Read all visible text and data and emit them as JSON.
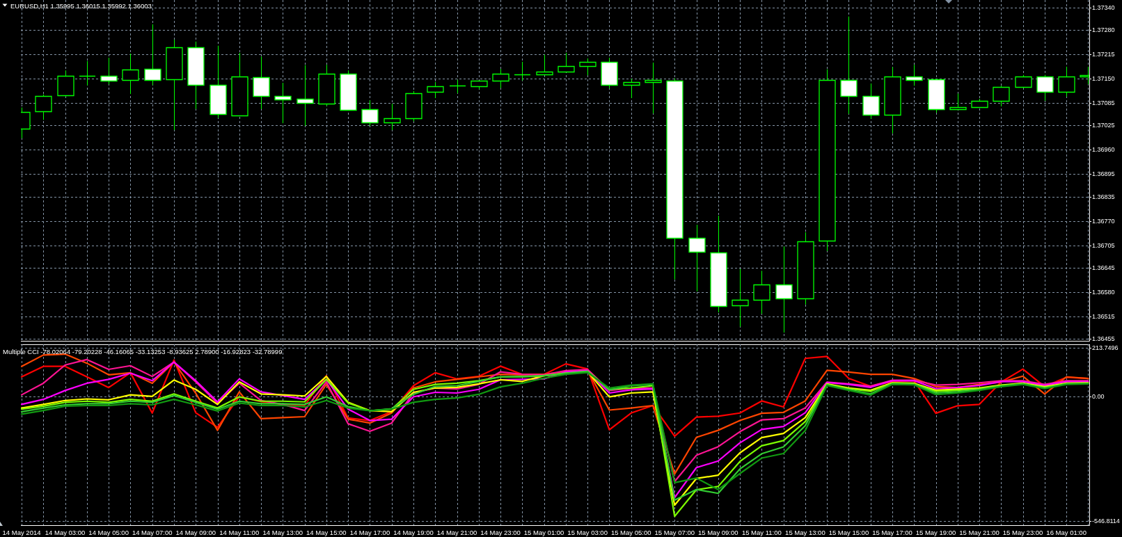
{
  "chart_data": [
    {
      "type": "candlestick",
      "title": "EURUSD,H1 1.35995 1.36015 1.35992 1.36003",
      "x": [
        "2014-05-14T01:00",
        "2014-05-14T02:00",
        "2014-05-14T03:00",
        "2014-05-14T04:00",
        "2014-05-14T05:00",
        "2014-05-14T06:00",
        "2014-05-14T07:00",
        "2014-05-14T08:00",
        "2014-05-14T09:00",
        "2014-05-14T10:00",
        "2014-05-14T11:00",
        "2014-05-14T12:00",
        "2014-05-14T13:00",
        "2014-05-14T14:00",
        "2014-05-14T15:00",
        "2014-05-14T16:00",
        "2014-05-14T17:00",
        "2014-05-14T18:00",
        "2014-05-14T19:00",
        "2014-05-14T20:00",
        "2014-05-14T21:00",
        "2014-05-14T22:00",
        "2014-05-14T23:00",
        "2014-05-15T00:00",
        "2014-05-15T01:00",
        "2014-05-15T02:00",
        "2014-05-15T03:00",
        "2014-05-15T04:00",
        "2014-05-15T05:00",
        "2014-05-15T06:00",
        "2014-05-15T07:00",
        "2014-05-15T08:00",
        "2014-05-15T09:00",
        "2014-05-15T10:00",
        "2014-05-15T11:00",
        "2014-05-15T12:00",
        "2014-05-15T13:00",
        "2014-05-15T14:00",
        "2014-05-15T15:00",
        "2014-05-15T16:00",
        "2014-05-15T17:00",
        "2014-05-15T18:00",
        "2014-05-15T19:00",
        "2014-05-15T20:00",
        "2014-05-15T21:00",
        "2014-05-15T22:00",
        "2014-05-15T23:00",
        "2014-05-16T00:00",
        "2014-05-16T01:00",
        "2014-05-16T02:00"
      ],
      "ohlc": [
        [
          1.37017,
          1.37073,
          1.36991,
          1.37061
        ],
        [
          1.37063,
          1.37108,
          1.3704,
          1.37104
        ],
        [
          1.37106,
          1.37172,
          1.37102,
          1.37158
        ],
        [
          1.37158,
          1.37197,
          1.37132,
          1.37158
        ],
        [
          1.37157,
          1.37206,
          1.37135,
          1.37145
        ],
        [
          1.37147,
          1.37217,
          1.37109,
          1.37174
        ],
        [
          1.37176,
          1.37295,
          1.37133,
          1.37147
        ],
        [
          1.37149,
          1.37254,
          1.37013,
          1.37234
        ],
        [
          1.37234,
          1.37249,
          1.37069,
          1.37133
        ],
        [
          1.37133,
          1.37238,
          1.37045,
          1.37055
        ],
        [
          1.37052,
          1.37219,
          1.37052,
          1.37156
        ],
        [
          1.37154,
          1.37209,
          1.37069,
          1.37104
        ],
        [
          1.37104,
          1.37139,
          1.37031,
          1.37095
        ],
        [
          1.37096,
          1.37186,
          1.37024,
          1.37085
        ],
        [
          1.37084,
          1.37187,
          1.37077,
          1.37163
        ],
        [
          1.37163,
          1.37172,
          1.37066,
          1.37067
        ],
        [
          1.37069,
          1.37092,
          1.37024,
          1.37034
        ],
        [
          1.37034,
          1.37083,
          1.37013,
          1.37044
        ],
        [
          1.37045,
          1.37117,
          1.37036,
          1.37111
        ],
        [
          1.37114,
          1.37141,
          1.37098,
          1.3713
        ],
        [
          1.37132,
          1.37147,
          1.37111,
          1.37132
        ],
        [
          1.3713,
          1.37145,
          1.37122,
          1.37145
        ],
        [
          1.37145,
          1.37176,
          1.37125,
          1.37163
        ],
        [
          1.37162,
          1.37195,
          1.37145,
          1.37162
        ],
        [
          1.37162,
          1.37214,
          1.37162,
          1.37168
        ],
        [
          1.37168,
          1.37219,
          1.37168,
          1.37184
        ],
        [
          1.37184,
          1.37204,
          1.37159,
          1.37195
        ],
        [
          1.37195,
          1.37206,
          1.37124,
          1.37133
        ],
        [
          1.37133,
          1.3715,
          1.37098,
          1.37141
        ],
        [
          1.37141,
          1.37193,
          1.37057,
          1.37147
        ],
        [
          1.37145,
          1.37151,
          1.36614,
          1.36725
        ],
        [
          1.36725,
          1.3676,
          1.36582,
          1.36688
        ],
        [
          1.36686,
          1.36784,
          1.36526,
          1.36542
        ],
        [
          1.36544,
          1.36642,
          1.36488,
          1.36559
        ],
        [
          1.36559,
          1.36637,
          1.36522,
          1.36601
        ],
        [
          1.36601,
          1.36702,
          1.36472,
          1.36564
        ],
        [
          1.36564,
          1.3674,
          1.36547,
          1.36716
        ],
        [
          1.36718,
          1.37175,
          1.3669,
          1.37147
        ],
        [
          1.37147,
          1.37316,
          1.37056,
          1.37103
        ],
        [
          1.37103,
          1.37137,
          1.37043,
          1.37054
        ],
        [
          1.37054,
          1.37181,
          1.37004,
          1.37156
        ],
        [
          1.37156,
          1.37187,
          1.37131,
          1.37147
        ],
        [
          1.37149,
          1.37149,
          1.37059,
          1.37068
        ],
        [
          1.37068,
          1.3711,
          1.37068,
          1.37074
        ],
        [
          1.37074,
          1.37096,
          1.37074,
          1.3709
        ],
        [
          1.3709,
          1.37131,
          1.37076,
          1.37127
        ],
        [
          1.37127,
          1.3716,
          1.37125,
          1.37156
        ],
        [
          1.37156,
          1.3716,
          1.37091,
          1.37115
        ],
        [
          1.37115,
          1.37182,
          1.37102,
          1.37156
        ],
        [
          1.37156,
          1.37182,
          1.37135,
          1.3716
        ]
      ],
      "color": "#00ff00",
      "colors": [
        "#000000",
        "#000000",
        "#000000",
        "#00ff00",
        "#ffffff",
        "#000000",
        "#ffffff",
        "#000000",
        "#ffffff",
        "#ffffff",
        "#000000",
        "#ffffff",
        "#ffffff",
        "#ffffff",
        "#000000",
        "#ffffff",
        "#ffffff",
        "#000000",
        "#000000",
        "#000000",
        "#00ff00",
        "#000000",
        "#000000",
        "#00ff00",
        "#000000",
        "#000000",
        "#000000",
        "#ffffff",
        "#000000",
        "#000000",
        "#ffffff",
        "#ffffff",
        "#ffffff",
        "#000000",
        "#000000",
        "#ffffff",
        "#000000",
        "#000000",
        "#ffffff",
        "#ffffff",
        "#000000",
        "#ffffff",
        "#ffffff",
        "#000000",
        "#000000",
        "#000000",
        "#000000",
        "#ffffff",
        "#000000",
        "#000000"
      ],
      "xlim": [
        "2014-05-14T00:58",
        "2014-05-16T02:03"
      ],
      "ylim": [
        1.3645,
        1.3736
      ],
      "xticks": [
        "2014-05-14T01:00",
        "2014-05-14T02:00",
        "2014-05-14T03:00",
        "2014-05-14T04:00",
        "2014-05-14T05:00",
        "2014-05-14T06:00",
        "2014-05-14T07:00",
        "2014-05-14T08:00",
        "2014-05-14T09:00",
        "2014-05-14T10:00",
        "2014-05-14T11:00",
        "2014-05-14T12:00",
        "2014-05-14T13:00",
        "2014-05-14T14:00",
        "2014-05-14T15:00",
        "2014-05-14T16:00",
        "2014-05-14T17:00",
        "2014-05-14T18:00",
        "2014-05-14T19:00",
        "2014-05-14T20:00",
        "2014-05-14T21:00",
        "2014-05-14T22:00",
        "2014-05-14T23:00",
        "2014-05-15T00:00",
        "2014-05-15T01:00",
        "2014-05-15T02:00",
        "2014-05-15T03:00",
        "2014-05-15T04:00",
        "2014-05-15T05:00",
        "2014-05-15T06:00",
        "2014-05-15T07:00",
        "2014-05-15T08:00",
        "2014-05-15T09:00",
        "2014-05-15T10:00",
        "2014-05-15T11:00",
        "2014-05-15T12:00",
        "2014-05-15T13:00",
        "2014-05-15T14:00",
        "2014-05-15T15:00",
        "2014-05-15T16:00",
        "2014-05-15T17:00",
        "2014-05-15T18:00",
        "2014-05-15T19:00",
        "2014-05-15T20:00",
        "2014-05-15T21:00",
        "2014-05-15T22:00",
        "2014-05-15T23:00",
        "2014-05-16T00:00",
        "2014-05-16T01:00",
        "2014-05-16T02:00"
      ],
      "yticks": [
        {
          "value": 1.3734,
          "label": "1.37340"
        },
        {
          "value": 1.3728,
          "label": "1.37280"
        },
        1.37215,
        {
          "value": 1.3715,
          "label": "1.37150"
        },
        1.37085,
        1.37025,
        {
          "value": 1.3696,
          "label": "1.36960"
        },
        1.36895,
        1.36835,
        {
          "value": 1.3677,
          "label": "1.36770"
        },
        1.36705,
        1.36645,
        {
          "value": 1.3658,
          "label": "1.36580"
        },
        1.36515,
        1.36455
      ],
      "grid": true,
      "tick_labels": "y"
    },
    {
      "type": "line",
      "title": "Multiple CCI -78.02064 -79.20228 -46.16065 -33.13253 -8.93625 2.78900 -16.92823 -32.78999",
      "x": [
        "2014-05-14T01:00",
        "2014-05-14T02:00",
        "2014-05-14T03:00",
        "2014-05-14T04:00",
        "2014-05-14T05:00",
        "2014-05-14T06:00",
        "2014-05-14T07:00",
        "2014-05-14T08:00",
        "2014-05-14T09:00",
        "2014-05-14T10:00",
        "2014-05-14T11:00",
        "2014-05-14T12:00",
        "2014-05-14T13:00",
        "2014-05-14T14:00",
        "2014-05-14T15:00",
        "2014-05-14T16:00",
        "2014-05-14T17:00",
        "2014-05-14T18:00",
        "2014-05-14T19:00",
        "2014-05-14T20:00",
        "2014-05-14T21:00",
        "2014-05-14T22:00",
        "2014-05-14T23:00",
        "2014-05-15T00:00",
        "2014-05-15T01:00",
        "2014-05-15T02:00",
        "2014-05-15T03:00",
        "2014-05-15T04:00",
        "2014-05-15T05:00",
        "2014-05-15T06:00",
        "2014-05-15T07:00",
        "2014-05-15T08:00",
        "2014-05-15T09:00",
        "2014-05-15T10:00",
        "2014-05-15T11:00",
        "2014-05-15T12:00",
        "2014-05-15T13:00",
        "2014-05-15T14:00",
        "2014-05-15T15:00",
        "2014-05-15T16:00",
        "2014-05-15T17:00",
        "2014-05-15T18:00",
        "2014-05-15T19:00",
        "2014-05-15T20:00",
        "2014-05-15T21:00",
        "2014-05-15T22:00",
        "2014-05-15T23:00",
        "2014-05-16T00:00",
        "2014-05-16T01:00",
        "2014-05-16T02:00"
      ],
      "series": [
        {
          "color": "#ff0000",
          "values": [
            87,
            133,
            133,
            87,
            40,
            105,
            -72,
            161,
            -71,
            -135,
            0,
            -22,
            -34,
            -39,
            92,
            -94,
            -105,
            -66,
            48,
            105,
            78,
            89,
            134,
            98,
            98,
            144,
            122,
            -146,
            -72,
            -39,
            -174,
            -90,
            -86,
            -72,
            -19,
            -45,
            168,
            177,
            80,
            46,
            66,
            70,
            -73,
            -40,
            -34,
            64,
            121,
            44,
            85,
            80
          ]
        },
        {
          "color": "#ff4500",
          "values": [
            133,
            183,
            187,
            147,
            96,
            105,
            59,
            152,
            15,
            -148,
            21,
            -97,
            -92,
            -88,
            54,
            -99,
            -116,
            -72,
            38,
            65,
            76,
            87,
            98,
            96,
            98,
            109,
            116,
            -59,
            -50,
            -39,
            -340,
            -179,
            -148,
            -105,
            -73,
            -69,
            -19,
            116,
            108,
            98,
            98,
            80,
            44,
            40,
            54,
            64,
            90,
            12,
            87,
            80
          ]
        },
        {
          "color": "#ff1493",
          "values": [
            8,
            59,
            139,
            163,
            120,
            136,
            89,
            152,
            65,
            -28,
            59,
            -17,
            -34,
            -61,
            65,
            -119,
            -152,
            -116,
            16,
            38,
            34,
            54,
            109,
            98,
            96,
            114,
            120,
            27,
            38,
            38,
            -373,
            -258,
            -220,
            -154,
            -102,
            -97,
            -50,
            64,
            56,
            46,
            72,
            72,
            51,
            54,
            61,
            70,
            70,
            54,
            70,
            70
          ]
        },
        {
          "color": "#ff00ff",
          "values": [
            -34,
            -12,
            27,
            59,
            76,
            103,
            70,
            152,
            70,
            -23,
            78,
            21,
            5,
            -12,
            76,
            -55,
            -105,
            -99,
            -1,
            19,
            16,
            32,
            74,
            76,
            78,
            109,
            114,
            16,
            30,
            34,
            -444,
            -312,
            -283,
            -203,
            -144,
            -131,
            -71,
            62,
            54,
            41,
            70,
            70,
            35,
            40,
            49,
            66,
            66,
            49,
            66,
            66
          ]
        },
        {
          "color": "#ffff00",
          "values": [
            -50,
            -34,
            -17,
            -10,
            -14,
            8,
            1,
            73,
            32,
            -34,
            65,
            12,
            8,
            3,
            89,
            -25,
            -61,
            -66,
            19,
            38,
            41,
            56,
            74,
            67,
            92,
            103,
            109,
            -1,
            16,
            21,
            -477,
            -360,
            -345,
            -247,
            -180,
            -162,
            -92,
            56,
            38,
            28,
            61,
            59,
            28,
            33,
            38,
            51,
            59,
            44,
            59,
            61
          ]
        },
        {
          "color": "#7cfc00",
          "values": [
            -55,
            -42,
            -25,
            -20,
            -25,
            -12,
            -20,
            12,
            -20,
            -50,
            -1,
            -20,
            -20,
            -23,
            76,
            -28,
            -62,
            -55,
            32,
            54,
            59,
            70,
            87,
            87,
            92,
            103,
            111,
            32,
            38,
            48,
            -526,
            -409,
            -395,
            -285,
            -216,
            -193,
            -110,
            54,
            35,
            23,
            59,
            56,
            23,
            28,
            35,
            49,
            57,
            41,
            57,
            59
          ]
        },
        {
          "color": "#32cd32",
          "values": [
            -66,
            -50,
            -36,
            -31,
            -31,
            -20,
            -25,
            5,
            -25,
            -55,
            -20,
            -31,
            -31,
            -34,
            -1,
            -44,
            -62,
            -53,
            10,
            45,
            48,
            67,
            87,
            89,
            92,
            103,
            111,
            30,
            48,
            54,
            -455,
            -408,
            -425,
            -318,
            -251,
            -221,
            -128,
            52,
            31,
            12,
            57,
            54,
            16,
            21,
            31,
            46,
            56,
            38,
            56,
            57
          ]
        },
        {
          "color": "#119911",
          "values": [
            -77,
            -61,
            -42,
            -39,
            -39,
            -31,
            -36,
            -12,
            -36,
            -63,
            -28,
            -39,
            -39,
            -45,
            -17,
            -50,
            -62,
            -55,
            -25,
            -12,
            -6,
            10,
            43,
            59,
            81,
            98,
            106,
            38,
            51,
            56,
            -378,
            -358,
            -408,
            -338,
            -270,
            -250,
            -149,
            49,
            28,
            7,
            54,
            52,
            9,
            16,
            28,
            44,
            54,
            35,
            54,
            56
          ]
        }
      ],
      "xlim": [
        "2014-05-14T00:58",
        "2014-05-16T02:03"
      ],
      "ylim": [
        -565,
        230
      ],
      "xticks": [
        {
          "value": "2014-05-14T01:00",
          "label": "14 May 2014"
        },
        {
          "value": "2014-05-14T02:00",
          "label": null
        },
        {
          "value": "2014-05-14T03:00",
          "label": "14 May 03:00"
        },
        {
          "value": "2014-05-14T04:00",
          "label": null
        },
        {
          "value": "2014-05-14T05:00",
          "label": "14 May 05:00"
        },
        {
          "value": "2014-05-14T06:00",
          "label": null
        },
        {
          "value": "2014-05-14T07:00",
          "label": "14 May 07:00"
        },
        {
          "value": "2014-05-14T08:00",
          "label": null
        },
        {
          "value": "2014-05-14T09:00",
          "label": "14 May 09:00"
        },
        {
          "value": "2014-05-14T10:00",
          "label": null
        },
        {
          "value": "2014-05-14T11:00",
          "label": "14 May 11:00"
        },
        {
          "value": "2014-05-14T12:00",
          "label": null
        },
        {
          "value": "2014-05-14T13:00",
          "label": "14 May 13:00"
        },
        {
          "value": "2014-05-14T14:00",
          "label": null
        },
        {
          "value": "2014-05-14T15:00",
          "label": "14 May 15:00"
        },
        {
          "value": "2014-05-14T16:00",
          "label": null
        },
        {
          "value": "2014-05-14T17:00",
          "label": "14 May 17:00"
        },
        {
          "value": "2014-05-14T18:00",
          "label": null
        },
        {
          "value": "2014-05-14T19:00",
          "label": "14 May 19:00"
        },
        {
          "value": "2014-05-14T20:00",
          "label": null
        },
        {
          "value": "2014-05-14T21:00",
          "label": "14 May 21:00"
        },
        {
          "value": "2014-05-14T22:00",
          "label": null
        },
        {
          "value": "2014-05-14T23:00",
          "label": "14 May 23:00"
        },
        {
          "value": "2014-05-15T00:00",
          "label": null
        },
        {
          "value": "2014-05-15T01:00",
          "label": "15 May 01:00"
        },
        {
          "value": "2014-05-15T02:00",
          "label": null
        },
        {
          "value": "2014-05-15T03:00",
          "label": "15 May 03:00"
        },
        {
          "value": "2014-05-15T04:00",
          "label": null
        },
        {
          "value": "2014-05-15T05:00",
          "label": "15 May 05:00"
        },
        {
          "value": "2014-05-15T06:00",
          "label": null
        },
        {
          "value": "2014-05-15T07:00",
          "label": "15 May 07:00"
        },
        {
          "value": "2014-05-15T08:00",
          "label": null
        },
        {
          "value": "2014-05-15T09:00",
          "label": "15 May 09:00"
        },
        {
          "value": "2014-05-15T10:00",
          "label": null
        },
        {
          "value": "2014-05-15T11:00",
          "label": "15 May 11:00"
        },
        {
          "value": "2014-05-15T12:00",
          "label": null
        },
        {
          "value": "2014-05-15T13:00",
          "label": "15 May 13:00"
        },
        {
          "value": "2014-05-15T14:00",
          "label": null
        },
        {
          "value": "2014-05-15T15:00",
          "label": "15 May 15:00"
        },
        {
          "value": "2014-05-15T16:00",
          "label": null
        },
        {
          "value": "2014-05-15T17:00",
          "label": "15 May 17:00"
        },
        {
          "value": "2014-05-15T18:00",
          "label": null
        },
        {
          "value": "2014-05-15T19:00",
          "label": "15 May 19:00"
        },
        {
          "value": "2014-05-15T20:00",
          "label": null
        },
        {
          "value": "2014-05-15T21:00",
          "label": "15 May 21:00"
        },
        {
          "value": "2014-05-15T22:00",
          "label": null
        },
        {
          "value": "2014-05-15T23:00",
          "label": "15 May 23:00"
        },
        {
          "value": "2014-05-16T00:00",
          "label": null
        },
        {
          "value": "2014-05-16T01:00",
          "label": "16 May 01:00"
        },
        {
          "value": "2014-05-16T02:00",
          "label": null
        }
      ],
      "yticks": [
        213.7496,
        {
          "value": 0,
          "label": "0.00"
        },
        -546.8114
      ],
      "grid": true
    }
  ]
}
